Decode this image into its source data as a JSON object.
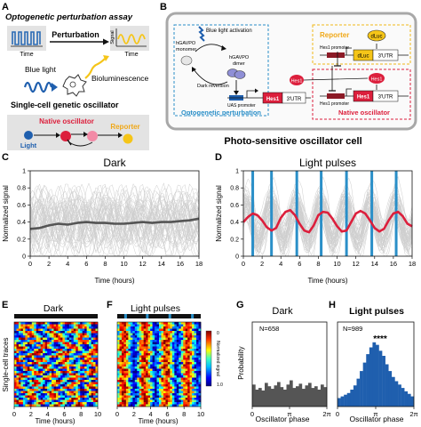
{
  "panels": {
    "A": {
      "letter": "A",
      "title": "Optogenetic perturbation assay",
      "perturbation": "Perturbation",
      "time": "Time",
      "signal": "Signal",
      "blue_light": "Blue light",
      "bioluminescence": "Bioluminescence",
      "subtitle": "Single-cell genetic oscillator",
      "native": "Native oscillator",
      "reporter": "Reporter",
      "light": "Light"
    },
    "B": {
      "letter": "B",
      "blue_light_activation": "Blue light activation",
      "monomer_1": "hGAVPO",
      "monomer_2": "monomer",
      "dimer_1": "hGAVPO",
      "dimer_2": "dimer",
      "dark_reversion": "Dark reversion",
      "uas": "UAS promoter",
      "hes1_a": "Hes1",
      "utr_a": "3'UTR",
      "opto_label": "Optogenetic perturbation",
      "reporter_label": "Reporter",
      "hes1_promoter_1": "Hes1 promoter",
      "dluc_gene": "dLuc",
      "utr_b": "3'UTR",
      "dluc_protein": "dLuc",
      "hes1_promoter_2": "Hes1 promoter",
      "hes1_b": "Hes1",
      "utr_c": "3'UTR",
      "hes1_protein_1": "Hes1",
      "hes1_protein_2": "Hes1",
      "native_label": "Native oscillator",
      "caption": "Photo-sensitive oscillator cell"
    },
    "C": {
      "letter": "C",
      "title": "Dark",
      "ylabel": "Normalized signal",
      "xlabel": "Time (hours)"
    },
    "D": {
      "letter": "D",
      "title": "Light pulses",
      "ylabel": "Normalized signal",
      "xlabel": "Time (hours)"
    },
    "E": {
      "letter": "E",
      "title": "Dark",
      "ylabel": "Single-cell traces",
      "xlabel": "Time (hours)"
    },
    "F": {
      "letter": "F",
      "title": "Light pulses",
      "xlabel": "Time (hours)",
      "colorbar_label": "Normalized signal",
      "cb_min": "0",
      "cb_max": "1.0"
    },
    "G": {
      "letter": "G",
      "title": "Dark",
      "n_label": "N=658",
      "ylabel": "Probability",
      "xlabel": "Oscillator phase"
    },
    "H": {
      "letter": "H",
      "title": "Light pulses",
      "n_label": "N=989",
      "stars": "****",
      "xlabel": "Oscillator phase"
    }
  },
  "chart_data": [
    {
      "id": "C",
      "type": "line",
      "title": "Dark",
      "xlabel": "Time (hours)",
      "ylabel": "Normalized signal",
      "xlim": [
        0,
        18
      ],
      "ylim": [
        0,
        1
      ],
      "x_ticks": [
        0,
        2,
        4,
        6,
        8,
        10,
        12,
        14,
        16,
        18
      ],
      "y_ticks": [
        0,
        0.2,
        0.4,
        0.6,
        0.8,
        1
      ],
      "mean": {
        "x": [
          0,
          1,
          2,
          3,
          4,
          5,
          6,
          7,
          8,
          9,
          10,
          11,
          12,
          13,
          14,
          15,
          16,
          17,
          18
        ],
        "y": [
          0.32,
          0.33,
          0.36,
          0.38,
          0.37,
          0.39,
          0.4,
          0.39,
          0.39,
          0.38,
          0.38,
          0.39,
          0.4,
          0.39,
          0.4,
          0.4,
          0.41,
          0.42,
          0.44
        ]
      },
      "color_mean": "#555555",
      "color_traces": "#cfcfcf"
    },
    {
      "id": "D",
      "type": "line",
      "title": "Light pulses",
      "xlabel": "Time (hours)",
      "ylabel": "Normalized signal",
      "xlim": [
        0,
        18
      ],
      "ylim": [
        0,
        1
      ],
      "x_ticks": [
        0,
        2,
        4,
        6,
        8,
        10,
        12,
        14,
        16,
        18
      ],
      "y_ticks": [
        0,
        0.2,
        0.4,
        0.6,
        0.8,
        1
      ],
      "pulses_h": [
        1,
        3,
        5.7,
        8.3,
        11,
        13.7,
        16.3
      ],
      "mean": {
        "x": [
          0,
          0.5,
          1,
          1.5,
          2,
          2.5,
          3,
          3.5,
          4,
          4.5,
          5,
          5.5,
          6,
          6.5,
          7,
          7.5,
          8,
          8.5,
          9,
          9.5,
          10,
          10.5,
          11,
          11.5,
          12,
          12.5,
          13,
          13.5,
          14,
          14.5,
          15,
          15.5,
          16,
          16.5,
          17,
          17.5,
          18
        ],
        "y": [
          0.4,
          0.46,
          0.5,
          0.48,
          0.42,
          0.34,
          0.3,
          0.33,
          0.45,
          0.52,
          0.54,
          0.48,
          0.38,
          0.3,
          0.28,
          0.36,
          0.48,
          0.52,
          0.51,
          0.44,
          0.35,
          0.29,
          0.3,
          0.4,
          0.5,
          0.53,
          0.5,
          0.42,
          0.33,
          0.29,
          0.32,
          0.42,
          0.5,
          0.52,
          0.47,
          0.38,
          0.35
        ]
      },
      "color_mean": "#dc1f3c",
      "color_pulse": "#2a8fc8"
    },
    {
      "id": "E",
      "type": "heatmap",
      "title": "Dark",
      "xlabel": "Time (hours)",
      "ylabel": "Single-cell traces",
      "xlim": [
        0,
        10
      ],
      "x_ticks": [
        0,
        2,
        4,
        6,
        8,
        10
      ],
      "rows": 38,
      "cols": 38,
      "phase_aligned": false
    },
    {
      "id": "F",
      "type": "heatmap",
      "title": "Light pulses",
      "xlabel": "Time (hours)",
      "xlim": [
        0,
        10
      ],
      "x_ticks": [
        0,
        2,
        4,
        6,
        8,
        10
      ],
      "rows": 38,
      "cols": 38,
      "phase_aligned": true,
      "pulses_h": [
        1,
        3.6,
        6.3,
        9
      ],
      "colorbar": [
        0,
        1
      ]
    },
    {
      "id": "G",
      "type": "bar",
      "title": "Dark",
      "xlabel": "Oscillator phase",
      "ylabel": "Probability",
      "x_ticks": [
        "0",
        "π",
        "2π"
      ],
      "values": [
        0.26,
        0.2,
        0.22,
        0.19,
        0.28,
        0.24,
        0.21,
        0.25,
        0.29,
        0.23,
        0.2,
        0.26,
        0.31,
        0.22,
        0.24,
        0.27,
        0.21,
        0.25,
        0.28,
        0.22,
        0.24,
        0.2,
        0.26,
        0.23
      ],
      "ylim": [
        0,
        1
      ],
      "color": "#555555"
    },
    {
      "id": "H",
      "type": "bar",
      "title": "Light pulses",
      "xlabel": "Oscillator phase",
      "x_ticks": [
        "0",
        "π",
        "2π"
      ],
      "values": [
        0.1,
        0.12,
        0.14,
        0.16,
        0.2,
        0.25,
        0.33,
        0.42,
        0.52,
        0.62,
        0.7,
        0.76,
        0.73,
        0.66,
        0.6,
        0.5,
        0.42,
        0.35,
        0.3,
        0.26,
        0.22,
        0.18,
        0.15,
        0.12
      ],
      "ylim": [
        0,
        1
      ],
      "color": "#1f5fae"
    }
  ]
}
